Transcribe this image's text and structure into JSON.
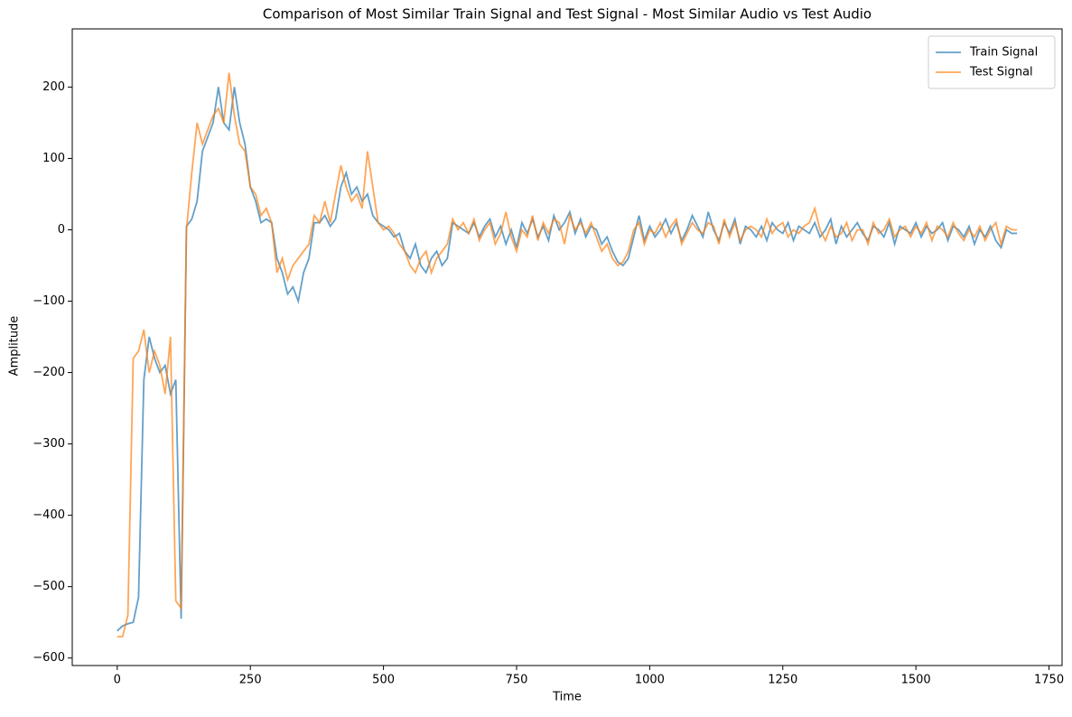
{
  "chart_data": {
    "type": "line",
    "title": "Comparison of Most Similar Train Signal and Test Signal - Most Similar Audio vs Test Audio",
    "xlabel": "Time",
    "ylabel": "Amplitude",
    "x": [
      0,
      10,
      20,
      30,
      40,
      50,
      60,
      70,
      80,
      90,
      100,
      110,
      120,
      130,
      140,
      150,
      160,
      170,
      180,
      190,
      200,
      210,
      220,
      230,
      240,
      250,
      260,
      270,
      280,
      290,
      300,
      310,
      320,
      330,
      340,
      350,
      360,
      370,
      380,
      390,
      400,
      410,
      420,
      430,
      440,
      450,
      460,
      470,
      480,
      490,
      500,
      510,
      520,
      530,
      540,
      550,
      560,
      570,
      580,
      590,
      600,
      610,
      620,
      630,
      640,
      650,
      660,
      670,
      680,
      690,
      700,
      710,
      720,
      730,
      740,
      750,
      760,
      770,
      780,
      790,
      800,
      810,
      820,
      830,
      840,
      850,
      860,
      870,
      880,
      890,
      900,
      910,
      920,
      930,
      940,
      950,
      960,
      970,
      980,
      990,
      1000,
      1010,
      1020,
      1030,
      1040,
      1050,
      1060,
      1070,
      1080,
      1090,
      1100,
      1110,
      1120,
      1130,
      1140,
      1150,
      1160,
      1170,
      1180,
      1190,
      1200,
      1210,
      1220,
      1230,
      1240,
      1250,
      1260,
      1270,
      1280,
      1290,
      1300,
      1310,
      1320,
      1330,
      1340,
      1350,
      1360,
      1370,
      1380,
      1390,
      1400,
      1410,
      1420,
      1430,
      1440,
      1450,
      1460,
      1470,
      1480,
      1490,
      1500,
      1510,
      1520,
      1530,
      1540,
      1550,
      1560,
      1570,
      1580,
      1590,
      1600,
      1610,
      1620,
      1630,
      1640,
      1650,
      1660,
      1670,
      1680,
      1690
    ],
    "series": [
      {
        "name": "Train Signal",
        "color": "#1f77b4",
        "values": [
          -562,
          -555,
          -552,
          -550,
          -515,
          -210,
          -150,
          -180,
          -200,
          -190,
          -230,
          -210,
          -545,
          5,
          15,
          40,
          110,
          130,
          150,
          200,
          150,
          140,
          200,
          150,
          120,
          60,
          40,
          10,
          15,
          10,
          -40,
          -60,
          -90,
          -80,
          -100,
          -60,
          -40,
          10,
          10,
          20,
          5,
          15,
          60,
          80,
          50,
          60,
          40,
          50,
          20,
          10,
          5,
          0,
          -10,
          -5,
          -30,
          -40,
          -20,
          -50,
          -60,
          -40,
          -30,
          -50,
          -40,
          10,
          5,
          0,
          -5,
          10,
          -10,
          5,
          15,
          -10,
          5,
          -20,
          0,
          -25,
          10,
          -5,
          15,
          -10,
          5,
          -15,
          20,
          0,
          10,
          25,
          -5,
          15,
          -10,
          5,
          0,
          -20,
          -10,
          -30,
          -45,
          -50,
          -40,
          -10,
          20,
          -15,
          5,
          -10,
          0,
          15,
          -5,
          10,
          -15,
          0,
          20,
          5,
          -10,
          25,
          0,
          -15,
          10,
          -5,
          15,
          -20,
          5,
          0,
          -10,
          5,
          -15,
          10,
          0,
          -5,
          10,
          -15,
          5,
          0,
          -5,
          10,
          -10,
          0,
          15,
          -20,
          5,
          -10,
          0,
          10,
          -5,
          -15,
          5,
          0,
          -10,
          10,
          -20,
          5,
          0,
          -5,
          10,
          -10,
          5,
          -5,
          0,
          10,
          -15,
          5,
          0,
          -10,
          5,
          -20,
          0,
          -10,
          5,
          -15,
          -25,
          0,
          -5,
          -5
        ]
      },
      {
        "name": "Test Signal",
        "color": "#ff7f0e",
        "values": [
          -570,
          -570,
          -540,
          -180,
          -170,
          -140,
          -200,
          -170,
          -190,
          -230,
          -150,
          -520,
          -530,
          0,
          80,
          150,
          120,
          140,
          160,
          170,
          150,
          220,
          160,
          120,
          110,
          60,
          50,
          20,
          30,
          10,
          -60,
          -40,
          -70,
          -50,
          -40,
          -30,
          -20,
          20,
          10,
          40,
          10,
          50,
          90,
          60,
          40,
          50,
          30,
          110,
          60,
          10,
          0,
          5,
          -5,
          -20,
          -30,
          -50,
          -60,
          -40,
          -30,
          -60,
          -40,
          -30,
          -20,
          15,
          0,
          10,
          -5,
          15,
          -15,
          0,
          10,
          -20,
          -5,
          25,
          -10,
          -30,
          0,
          -10,
          20,
          -15,
          10,
          -5,
          15,
          10,
          -20,
          20,
          0,
          10,
          -5,
          10,
          -10,
          -30,
          -20,
          -40,
          -50,
          -45,
          -30,
          0,
          10,
          -20,
          0,
          -5,
          10,
          -10,
          5,
          15,
          -20,
          -5,
          10,
          0,
          -5,
          10,
          5,
          -20,
          15,
          -10,
          10,
          -15,
          0,
          5,
          0,
          -10,
          15,
          -5,
          5,
          10,
          -10,
          0,
          -5,
          5,
          10,
          30,
          0,
          -15,
          5,
          -10,
          -5,
          10,
          -15,
          0,
          0,
          -20,
          10,
          -5,
          0,
          15,
          -10,
          0,
          5,
          -10,
          5,
          -5,
          10,
          -15,
          5,
          0,
          -10,
          10,
          -5,
          -15,
          0,
          -10,
          5,
          -15,
          0,
          10,
          -20,
          5,
          0,
          0
        ]
      }
    ],
    "xlim": [
      -84.5,
      1774.5
    ],
    "xticks": [
      0,
      250,
      500,
      750,
      1000,
      1250,
      1500,
      1750
    ],
    "ylim": [
      -610.5,
      281.5
    ],
    "yticks": [
      {
        "value": -600,
        "label": "−600"
      },
      {
        "value": -500,
        "label": "−500"
      },
      {
        "value": -400,
        "label": "−400"
      },
      {
        "value": -300,
        "label": "−300"
      },
      {
        "value": -200,
        "label": "−200"
      },
      {
        "value": -100,
        "label": "−100"
      },
      0,
      100,
      200
    ],
    "legend": "upper right"
  }
}
